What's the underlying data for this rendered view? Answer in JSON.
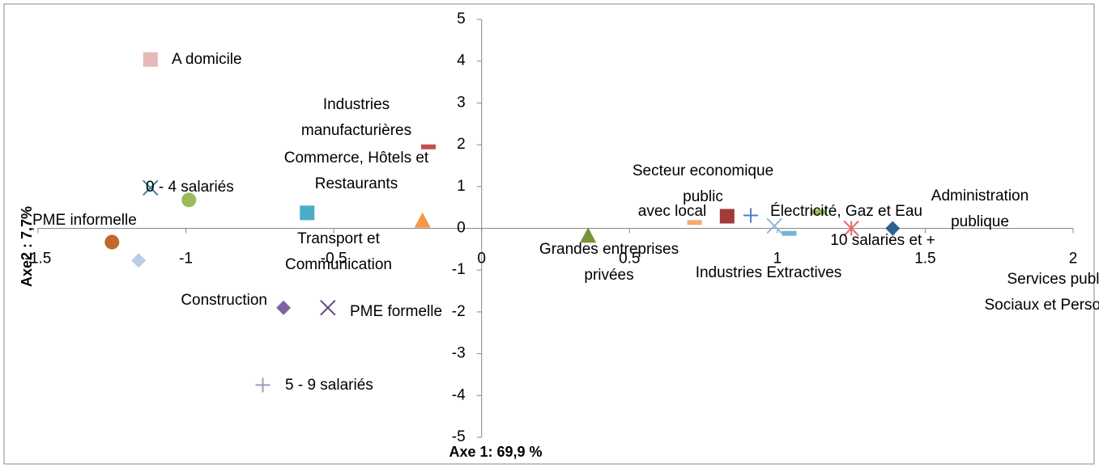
{
  "chart_data": {
    "type": "scatter",
    "x_label": "Axe 1: 69,9 %",
    "y_label": "Axe2 : 7,7%",
    "xlim": [
      -1.5,
      2
    ],
    "ylim": [
      -5,
      5
    ],
    "xticks": [
      -1.5,
      -1,
      -0.5,
      0,
      0.5,
      1,
      1.5,
      2
    ],
    "yticks": [
      -5,
      -4,
      -3,
      -2,
      -1,
      0,
      1,
      2,
      3,
      4,
      5
    ],
    "points": [
      {
        "label": [
          "A domicile"
        ],
        "x": -1.12,
        "y": 4.04,
        "color": "#e6b9b8",
        "marker": "square"
      },
      {
        "label": [
          "Industries",
          "manufacturières"
        ],
        "x": -0.18,
        "y": 1.95,
        "color": "#c0504d",
        "marker": "dash"
      },
      {
        "label": [
          "Commerce, Hôtels et",
          "Restaurants"
        ],
        "x": -0.2,
        "y": 0.19,
        "color": "#f79646",
        "marker": "triangle"
      },
      {
        "label": [
          "0 - 4 salariés"
        ],
        "x": -1.12,
        "y": 0.97,
        "color": "#31859c",
        "marker": "x"
      },
      {
        "label": null,
        "x": -0.99,
        "y": 0.68,
        "color": "#9bbb59",
        "marker": "circle"
      },
      {
        "label": [
          "PME informelle"
        ],
        "x": -1.25,
        "y": -0.33,
        "color": "#c0692a",
        "marker": "circle"
      },
      {
        "label": null,
        "x": -1.16,
        "y": -0.77,
        "color": "#b9cde5",
        "marker": "diamond"
      },
      {
        "label": [
          "Transport et",
          "Communication"
        ],
        "x": -0.59,
        "y": 0.37,
        "color": "#4bacc6",
        "marker": "square"
      },
      {
        "label": [
          "Construction"
        ],
        "x": -0.67,
        "y": -1.9,
        "color": "#8064a2",
        "marker": "diamond"
      },
      {
        "label": [
          "PME formelle"
        ],
        "x": -0.52,
        "y": -1.9,
        "color": "#604a7b",
        "marker": "x"
      },
      {
        "label": [
          "5 - 9 salariés"
        ],
        "x": -0.74,
        "y": -3.75,
        "color": "#a696c4",
        "marker": "plus"
      },
      {
        "label": [
          "Grandes entreprises",
          "privées"
        ],
        "x": 0.36,
        "y": -0.17,
        "color": "#77933c",
        "marker": "triangle"
      },
      {
        "label": [
          "Secteur economique",
          "public"
        ],
        "x": 0.83,
        "y": 0.29,
        "color": "#a33a37",
        "marker": "square"
      },
      {
        "label": [
          "avec local"
        ],
        "x": 0.72,
        "y": 0.14,
        "color": "#f5a96b",
        "marker": "dash"
      },
      {
        "label": null,
        "x": 0.91,
        "y": 0.31,
        "color": "#4f81bd",
        "marker": "plus"
      },
      {
        "label": [
          "Électricité, Gaz et Eau"
        ],
        "x": 1.14,
        "y": 0.39,
        "color": "#9bbb59",
        "marker": "dash"
      },
      {
        "label": [
          "Industries Extractives"
        ],
        "x": 0.99,
        "y": 0.06,
        "color": "#95b3d7",
        "marker": "x"
      },
      {
        "label": [
          "Services public,",
          "Sociaux et Personnels"
        ],
        "x": 1.04,
        "y": -0.12,
        "color": "#71b7d6",
        "marker": "dash"
      },
      {
        "label": [
          "10 salariés et +"
        ],
        "x": 1.25,
        "y": 0.0,
        "color": "#e46c6a",
        "marker": "star"
      },
      {
        "label": [
          "Administration",
          "publique"
        ],
        "x": 1.39,
        "y": 0.0,
        "color": "#2e5f95",
        "marker": "diamond"
      }
    ]
  }
}
